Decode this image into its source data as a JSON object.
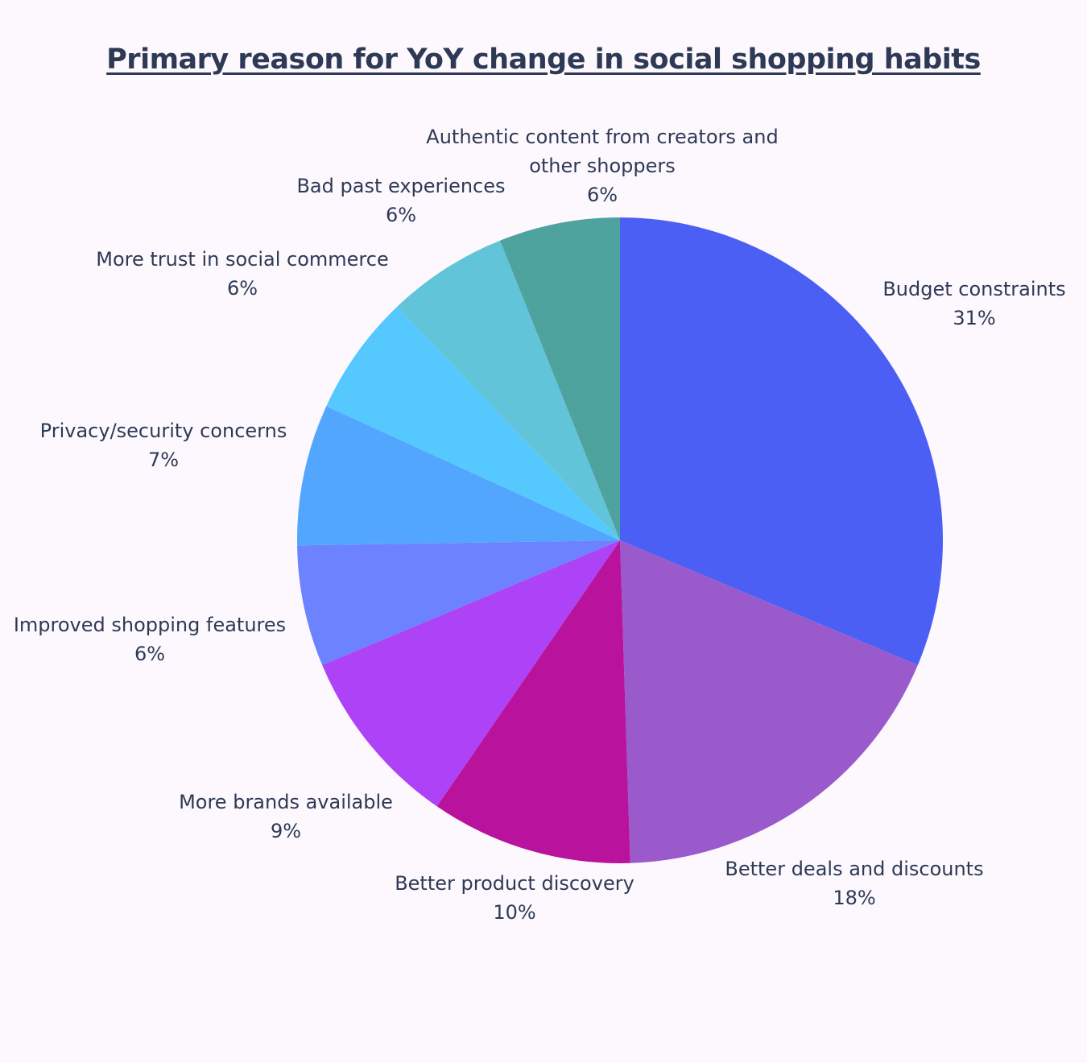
{
  "chart_data": {
    "type": "pie",
    "title": "Primary reason for YoY change in social shopping habits",
    "start": "12 o'clock",
    "direction": "clockwise",
    "slices": [
      {
        "label": "Budget constraints",
        "value": 31,
        "value_label": "31%",
        "color": "#4c5ff4"
      },
      {
        "label": "Better deals and discounts",
        "value": 18,
        "value_label": "18%",
        "color": "#9a5acc"
      },
      {
        "label": "Better product discovery",
        "value": 10,
        "value_label": "10%",
        "color": "#b9129d"
      },
      {
        "label": "More brands available",
        "value": 9,
        "value_label": "9%",
        "color": "#ae42f6"
      },
      {
        "label": "Improved shopping features",
        "value": 6,
        "value_label": "6%",
        "color": "#6c82fe"
      },
      {
        "label": "Privacy/security concerns",
        "value": 7,
        "value_label": "7%",
        "color": "#52a6fe"
      },
      {
        "label": "More trust in social commerce",
        "value": 6,
        "value_label": "6%",
        "color": "#55c8fe"
      },
      {
        "label": "Bad past experiences",
        "value": 6,
        "value_label": "6%",
        "color": "#61c4d8"
      },
      {
        "label": "Authentic content from creators and other shoppers",
        "value": 6,
        "value_label": "6%",
        "color": "#4fa39e"
      }
    ]
  }
}
